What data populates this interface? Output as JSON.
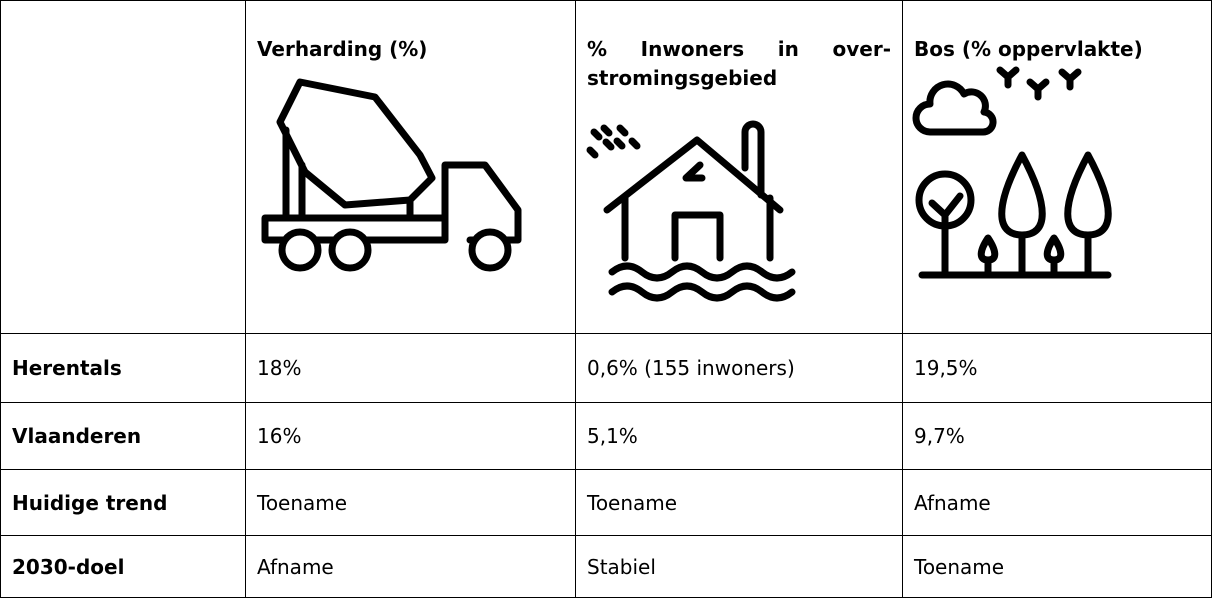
{
  "table": {
    "header": [
      "Verharding (%)",
      "% Inwoners in over-stromingsgebied",
      "Bos (% oppervlakte)"
    ],
    "rows": [
      [
        "Herentals",
        "18%",
        "0,6% (155 inwoners)",
        "19,5%"
      ],
      [
        "Vlaanderen",
        "16%",
        "5,1%",
        "9,7%"
      ],
      [
        "Huidige trend",
        "Toename",
        "Toename",
        "Afname"
      ],
      [
        "2030-doel",
        "Afname",
        "Stabiel",
        "Toename"
      ]
    ]
  }
}
